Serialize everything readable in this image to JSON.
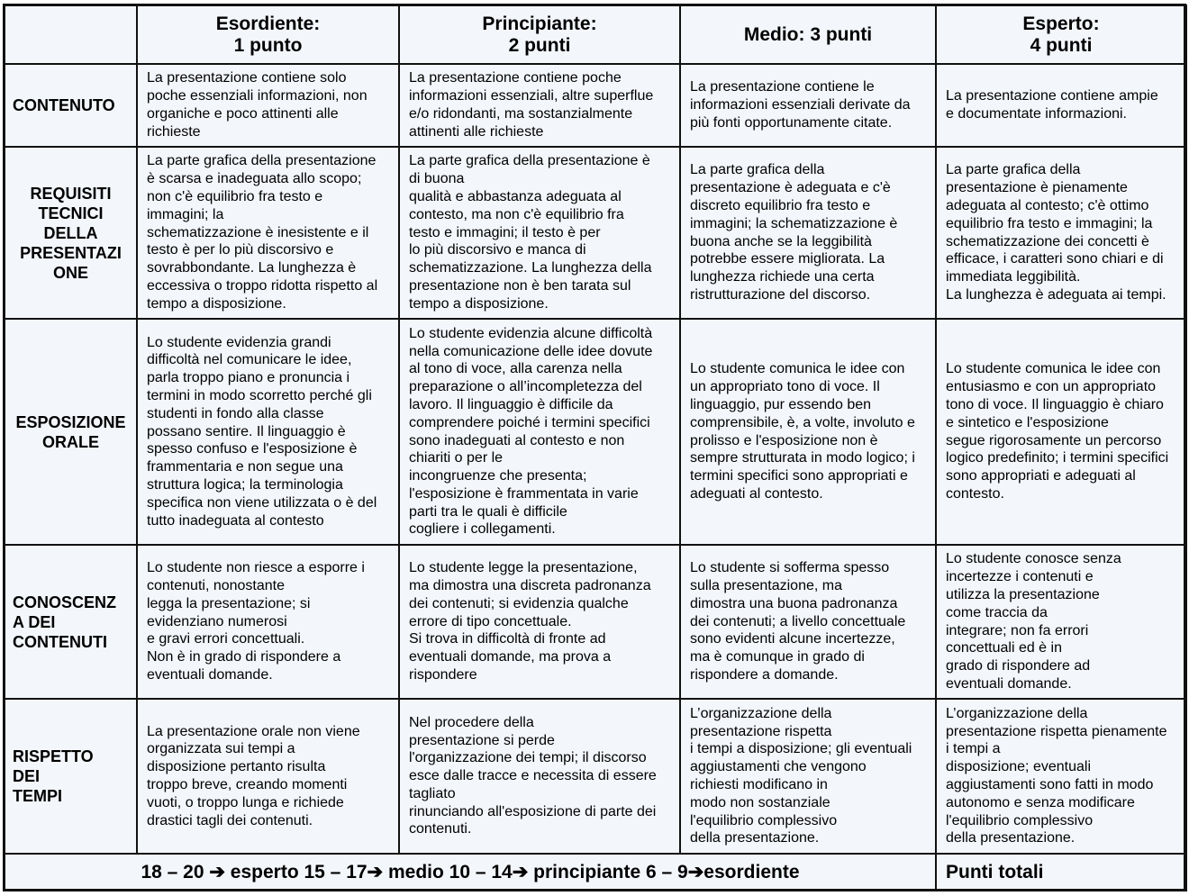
{
  "header": {
    "corner": "",
    "levels": [
      "Esordiente:\n1 punto",
      "Principiante:\n2 punti",
      "Medio: 3 punti",
      "Esperto:\n4 punti"
    ]
  },
  "rows": [
    {
      "label": "CONTENUTO",
      "cells": [
        "La presentazione contiene solo\npoche essenziali informazioni, non\norganiche e poco attinenti alle\nrichieste",
        "La presentazione contiene poche\ninformazioni essenziali, altre superflue\ne/o ridondanti, ma sostanzialmente\nattinenti alle richieste",
        "La presentazione contiene le\ninformazioni essenziali derivate da\npiù fonti opportunamente citate.",
        "La presentazione contiene ampie\ne documentate informazioni."
      ]
    },
    {
      "label": "REQUISITI\nTECNICI\nDELLA\nPRESENTAZI\nONE",
      "cells": [
        "La parte grafica della presentazione\nè scarsa e inadeguata allo scopo;\nnon c'è equilibrio fra testo e\nimmagini; la\nschematizzazione è inesistente e il\ntesto è per lo più discorsivo e\nsovrabbondante. La lunghezza è\neccessiva o troppo ridotta rispetto al\ntempo a disposizione.",
        "La parte grafica della presentazione è\ndi buona\nqualità e abbastanza adeguata al\ncontesto, ma non c'è equilibrio fra\ntesto e immagini; il testo è per\nlo più discorsivo e manca di\nschematizzazione. La lunghezza della\npresentazione non è ben tarata sul\ntempo a disposizione.",
        "La parte grafica della\npresentazione è adeguata e c'è\ndiscreto equilibrio fra testo e\nimmagini; la schematizzazione è\nbuona anche se la leggibilità\npotrebbe essere migliorata. La\nlunghezza richiede una certa\nristrutturazione del discorso.",
        "La parte grafica della\npresentazione è pienamente\nadeguata al contesto; c'è ottimo\nequilibrio fra testo e immagini; la\nschematizzazione dei concetti è\nefficace, i caratteri sono chiari e di\nimmediata leggibilità.\nLa lunghezza è adeguata ai tempi."
      ]
    },
    {
      "label": "ESPOSIZIONE\nORALE",
      "cells": [
        "Lo studente evidenzia grandi\ndifficoltà nel comunicare le idee,\nparla troppo piano e pronuncia i\ntermini in modo scorretto perché gli\nstudenti in fondo alla classe\npossano sentire. Il linguaggio è\nspesso confuso e l'esposizione è\nframmentaria e non segue una\nstruttura logica; la terminologia\nspecifica non viene utilizzata o è del\ntutto inadeguata al contesto",
        "Lo studente evidenzia alcune difficoltà\nnella comunicazione delle idee dovute\nal tono di voce, alla carenza nella\npreparazione o all’incompletezza del\nlavoro. Il linguaggio è difficile da\ncomprendere poiché i termini specifici\nsono inadeguati al contesto e non\nchiariti o per le\nincongruenze che presenta;\nl'esposizione è frammentata in varie\nparti tra le quali è difficile\ncogliere i collegamenti.",
        "Lo studente comunica le idee con\nun appropriato tono di voce. Il\nlinguaggio, pur essendo ben\ncomprensibile, è, a volte, involuto e\nprolisso e l'esposizione non è\nsempre strutturata in modo logico; i\ntermini specifici sono appropriati e\nadeguati al contesto.",
        "Lo studente comunica le idee con\nentusiasmo e con un appropriato\ntono di voce. Il linguaggio è chiaro\ne sintetico e l'esposizione\nsegue rigorosamente un percorso\nlogico predefinito; i termini specifici\nsono appropriati e adeguati al\ncontesto."
      ]
    },
    {
      "label": "CONOSCENZ\nA DEI\nCONTENUTI",
      "cells": [
        "Lo studente non riesce a esporre i\ncontenuti, nonostante\nlegga la presentazione; si\nevidenziano numerosi\ne gravi errori concettuali.\nNon è in grado di rispondere a\neventuali domande.",
        "Lo studente legge la presentazione,\nma dimostra una discreta padronanza\ndei contenuti; si evidenzia qualche\nerrore di tipo concettuale.\nSi trova in difficoltà di fronte ad\neventuali domande, ma prova a\nrispondere",
        "Lo studente si sofferma spesso\nsulla presentazione, ma\ndimostra una buona padronanza\ndei contenuti; a livello concettuale\nsono evidenti alcune incertezze,\nma è comunque in grado di\nrispondere a domande.",
        "Lo studente conosce senza\nincertezze i contenuti e\nutilizza la presentazione\ncome traccia da\nintegrare; non fa errori\nconcettuali ed è in\ngrado di rispondere ad\neventuali domande."
      ]
    },
    {
      "label": "RISPETTO\nDEI\nTEMPI",
      "cells": [
        "La presentazione orale non viene\norganizzata sui tempi a\ndisposizione pertanto risulta\ntroppo breve, creando momenti\nvuoti, o troppo lunga e richiede\ndrastici tagli dei contenuti.",
        "Nel procedere della\npresentazione si perde\nl'organizzazione dei tempi; il discorso\nesce dalle tracce e necessita di essere\ntagliato\nrinunciando all'esposizione di parte dei\ncontenuti.",
        "L’organizzazione della\npresentazione rispetta\ni tempi a disposizione; gli eventuali\naggiustamenti che vengono\nrichiesti  modificano in\nmodo non sostanziale\nl'equilibrio complessivo\ndella presentazione.",
        "L’organizzazione della\npresentazione rispetta pienamente\ni tempi a\ndisposizione; eventuali\naggiustamenti sono fatti in modo\nautonomo e senza modificare\nl'equilibrio complessivo\ndella presentazione."
      ]
    }
  ],
  "footer": {
    "scale": "18 – 20 ➔ esperto    15 – 17➔ medio    10 – 14➔ principiante    6 – 9➔esordiente",
    "total_label": "Punti totali"
  },
  "colors": {
    "background": "#f3f6fb",
    "border": "#111111"
  }
}
